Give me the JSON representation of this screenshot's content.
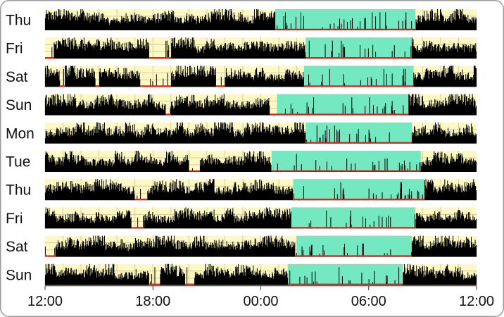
{
  "chart_data": {
    "type": "actogram",
    "title": "",
    "xlabel": "",
    "ylabel": "",
    "x_axis": {
      "unit": "hours",
      "range": [
        0,
        24
      ],
      "ticks": [
        {
          "hour": 0,
          "label": "12:00"
        },
        {
          "hour": 6,
          "label": "18:00"
        },
        {
          "hour": 12,
          "label": "00:00"
        },
        {
          "hour": 18,
          "label": "06:00"
        },
        {
          "hour": 24,
          "label": "12:00"
        }
      ],
      "gridline_interval_hours": 1
    },
    "colors": {
      "panel_background": "#fdf8c4",
      "gridline": "#d4ce9a",
      "activity": "#000000",
      "rest_highlight": "#74e8c0",
      "rest_line": "#e0201c",
      "frame": "#9b9b9b"
    },
    "rows": [
      {
        "label": "Thu",
        "rest_period": [
          12.8,
          20.6
        ],
        "low_activity": [
          [
            12.8,
            20.6
          ]
        ]
      },
      {
        "label": "Fri",
        "rest_period": [
          14.5,
          20.4
        ],
        "low_activity": [
          [
            0.0,
            0.5
          ],
          [
            5.8,
            7.0
          ],
          [
            14.5,
            20.4
          ]
        ]
      },
      {
        "label": "Sat",
        "rest_period": [
          14.4,
          20.5
        ],
        "low_activity": [
          [
            0.8,
            1.1
          ],
          [
            2.8,
            3.0
          ],
          [
            5.3,
            7.0
          ],
          [
            9.5,
            10.0
          ],
          [
            14.4,
            20.5
          ]
        ]
      },
      {
        "label": "Sun",
        "rest_period": [
          12.9,
          20.2
        ],
        "low_activity": [
          [
            6.7,
            7.0
          ],
          [
            12.5,
            13.0
          ],
          [
            12.9,
            20.2
          ]
        ]
      },
      {
        "label": "Mon",
        "rest_period": [
          14.5,
          20.4
        ],
        "low_activity": [
          [
            14.5,
            20.4
          ]
        ]
      },
      {
        "label": "Tue",
        "rest_period": [
          12.6,
          20.9
        ],
        "low_activity": [
          [
            8.0,
            8.6
          ],
          [
            12.6,
            20.9
          ]
        ]
      },
      {
        "label": "Thu",
        "rest_period": [
          13.8,
          21.1
        ],
        "low_activity": [
          [
            5.0,
            5.7
          ],
          [
            13.8,
            21.1
          ]
        ]
      },
      {
        "label": "Fri",
        "rest_period": [
          13.7,
          20.6
        ],
        "low_activity": [
          [
            4.8,
            5.5
          ],
          [
            13.7,
            20.6
          ]
        ]
      },
      {
        "label": "Sat",
        "rest_period": [
          14.0,
          20.4
        ],
        "low_activity": [
          [
            0.0,
            0.6
          ],
          [
            13.9,
            20.4
          ]
        ]
      },
      {
        "label": "Sun",
        "rest_period": [
          13.5,
          19.9
        ],
        "low_activity": [
          [
            5.8,
            6.4
          ],
          [
            7.8,
            8.3
          ],
          [
            13.5,
            19.9
          ]
        ]
      }
    ]
  }
}
